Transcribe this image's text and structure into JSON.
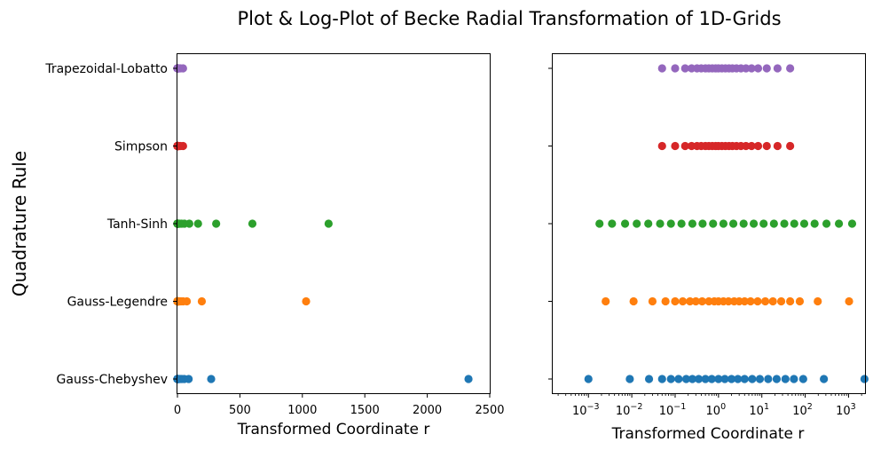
{
  "figure": {
    "title": "Plot & Log-Plot of Becke Radial Transformation of 1D-Grids"
  },
  "chart_data": [
    {
      "type": "scatter",
      "xscale": "linear",
      "xlim": [
        0,
        2500
      ],
      "xticks": [
        0,
        500,
        1000,
        1500,
        2000,
        2500
      ],
      "xlabel": "Transformed Coordinate r",
      "ylabel": "Quadrature Rule",
      "categories": [
        "Gauss-Chebyshev",
        "Gauss-Legendre",
        "Tanh-Sinh",
        "Simpson",
        "Trapezoidal-Lobatto"
      ],
      "series": [
        {
          "category": "Gauss-Chebyshev",
          "color": "#1f77b4",
          "x": [
            0.001,
            0.009,
            0.025,
            0.05,
            0.08,
            0.12,
            0.18,
            0.25,
            0.35,
            0.5,
            0.7,
            1.0,
            1.4,
            2,
            2.8,
            4,
            6,
            9,
            14,
            22,
            35,
            55,
            90,
            270,
            2330
          ]
        },
        {
          "category": "Gauss-Legendre",
          "color": "#ff7f0e",
          "x": [
            0.0025,
            0.011,
            0.03,
            0.06,
            0.1,
            0.15,
            0.22,
            0.3,
            0.42,
            0.6,
            0.8,
            1.0,
            1.3,
            1.7,
            2.3,
            3,
            4,
            5.5,
            8,
            12,
            18,
            28,
            45,
            75,
            195,
            1030
          ]
        },
        {
          "category": "Tanh-Sinh",
          "color": "#2ca02c",
          "x": [
            0.0018,
            0.0035,
            0.007,
            0.013,
            0.024,
            0.045,
            0.08,
            0.14,
            0.25,
            0.43,
            0.75,
            1.3,
            2.2,
            3.8,
            6.5,
            11,
            19,
            33,
            56,
            95,
            165,
            310,
            600,
            1210
          ]
        },
        {
          "category": "Simpson",
          "color": "#d62728",
          "x": [
            0.05,
            0.1,
            0.17,
            0.24,
            0.32,
            0.4,
            0.5,
            0.6,
            0.72,
            0.86,
            1.0,
            1.2,
            1.45,
            1.75,
            2.1,
            2.6,
            3.3,
            4.3,
            5.8,
            8.2,
            13,
            23,
            45
          ]
        },
        {
          "category": "Trapezoidal-Lobatto",
          "color": "#9467bd",
          "x": [
            0.05,
            0.1,
            0.17,
            0.24,
            0.32,
            0.4,
            0.5,
            0.6,
            0.72,
            0.86,
            1.0,
            1.2,
            1.45,
            1.75,
            2.1,
            2.6,
            3.3,
            4.3,
            5.8,
            8.2,
            13,
            23,
            45
          ]
        }
      ]
    },
    {
      "type": "scatter",
      "xscale": "log",
      "xlim": [
        0.00015,
        2400
      ],
      "xticks": [
        -3,
        -2,
        -1,
        0,
        1,
        2,
        3
      ],
      "xlabel": "Transformed Coordinate r",
      "ylabel": "",
      "categories": [
        "Gauss-Chebyshev",
        "Gauss-Legendre",
        "Tanh-Sinh",
        "Simpson",
        "Trapezoidal-Lobatto"
      ],
      "note_series": "same series as left panel"
    }
  ]
}
